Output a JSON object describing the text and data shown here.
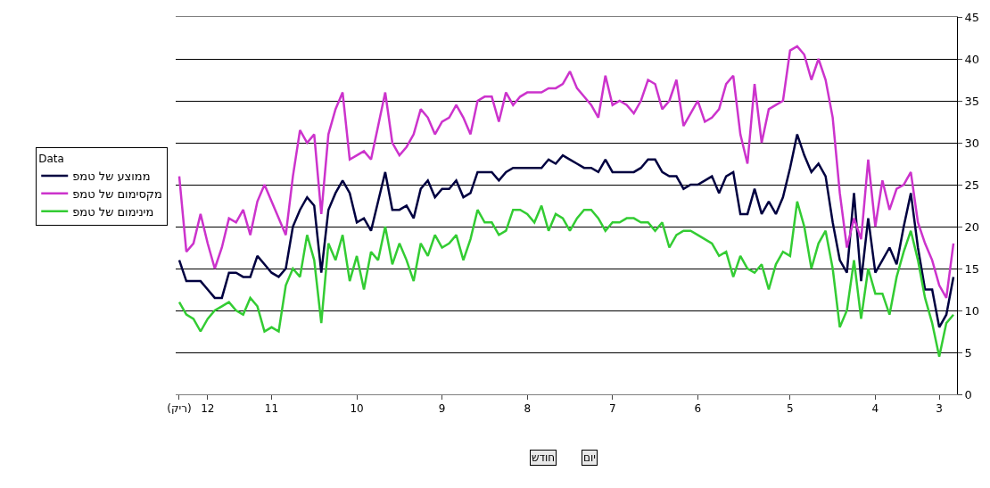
{
  "chart_data": {
    "type": "line",
    "categories": [
      "(ריק)",
      null,
      null,
      null,
      "12",
      null,
      null,
      null,
      null,
      null,
      null,
      null,
      null,
      "11",
      null,
      null,
      null,
      null,
      null,
      null,
      null,
      null,
      null,
      null,
      null,
      "10",
      null,
      null,
      null,
      null,
      null,
      null,
      null,
      null,
      null,
      null,
      null,
      "9",
      null,
      null,
      null,
      null,
      null,
      null,
      null,
      null,
      null,
      null,
      null,
      "8",
      null,
      null,
      null,
      null,
      null,
      null,
      null,
      null,
      null,
      null,
      null,
      "7",
      null,
      null,
      null,
      null,
      null,
      null,
      null,
      null,
      null,
      null,
      null,
      "6",
      null,
      null,
      null,
      null,
      null,
      null,
      null,
      null,
      null,
      null,
      null,
      null,
      "5",
      null,
      null,
      null,
      null,
      null,
      null,
      null,
      null,
      null,
      null,
      null,
      "4",
      null,
      null,
      null,
      null,
      null,
      null,
      null,
      null,
      "3",
      null,
      null
    ],
    "series": [
      {
        "name": "ממוצע של טמפ",
        "color": "#000040",
        "values": [
          16,
          13.5,
          13.5,
          13.5,
          12.5,
          11.5,
          11.5,
          14.5,
          14.5,
          14,
          14,
          16.5,
          15.5,
          14.5,
          14,
          15,
          20,
          22,
          23.5,
          22.5,
          14.5,
          22,
          24,
          25.5,
          24,
          20.5,
          21,
          19.5,
          23,
          26.5,
          22,
          22,
          22.5,
          21,
          24.5,
          25.5,
          23.5,
          24.5,
          24.5,
          25.5,
          23.5,
          24,
          26.5,
          26.5,
          26.5,
          25.5,
          26.5,
          27,
          27,
          27,
          27,
          27,
          28,
          27.5,
          28.5,
          28,
          27.5,
          27,
          27,
          26.5,
          28,
          26.5,
          26.5,
          26.5,
          26.5,
          27,
          28,
          28,
          26.5,
          26,
          26,
          24.5,
          25,
          25,
          25.5,
          26,
          24,
          26,
          26.5,
          21.5,
          21.5,
          24.5,
          21.5,
          23,
          21.5,
          23.5,
          27,
          31,
          28.5,
          26.5,
          27.5,
          26,
          20.5,
          16,
          14.5,
          24,
          13.5,
          21,
          14.5,
          16,
          17.5,
          15.5,
          20,
          24,
          17.5,
          12.5,
          12.5,
          8,
          9.5,
          14
        ]
      },
      {
        "name": "מקסימום של טמפ",
        "color": "#cc33cc",
        "values": [
          26,
          17,
          18,
          21.5,
          18,
          15,
          17.5,
          21,
          20.5,
          22,
          19,
          23,
          25,
          23,
          21,
          19,
          26,
          31.5,
          30,
          31,
          21.5,
          31,
          34,
          36,
          28,
          28.5,
          29,
          28,
          32,
          36,
          30,
          28.5,
          29.5,
          31,
          34,
          33,
          31,
          32.5,
          33,
          34.5,
          33,
          31,
          35,
          35.5,
          35.5,
          32.5,
          36,
          34.5,
          35.5,
          36,
          36,
          36,
          36.5,
          36.5,
          37,
          38.5,
          36.5,
          35.5,
          34.5,
          33,
          38,
          34.5,
          35,
          34.5,
          33.5,
          35,
          37.5,
          37,
          34,
          35,
          37.5,
          32,
          33.5,
          35,
          32.5,
          33,
          34,
          37,
          38,
          31,
          27.5,
          37,
          30,
          34,
          34.5,
          35,
          41,
          41.5,
          40.5,
          37.5,
          40,
          37.5,
          33,
          24,
          17.5,
          21,
          18.5,
          28,
          20,
          25.5,
          22,
          24.5,
          25,
          26.5,
          20.5,
          18,
          16,
          13,
          11.5,
          18
        ]
      },
      {
        "name": "מינימום של טמפ",
        "color": "#33cc33",
        "values": [
          11,
          9.5,
          9,
          7.5,
          9,
          10,
          10.5,
          11,
          10,
          9.5,
          11.5,
          10.5,
          7.5,
          8,
          7.5,
          13,
          15,
          14,
          19,
          16,
          8.5,
          18,
          16,
          19,
          13.5,
          16.5,
          12.5,
          17,
          16,
          20,
          15.5,
          18,
          16,
          13.5,
          18,
          16.5,
          19,
          17.5,
          18,
          19,
          16,
          18.5,
          22,
          20.5,
          20.5,
          19,
          19.5,
          22,
          22,
          21.5,
          20.5,
          22.5,
          19.5,
          21.5,
          21,
          19.5,
          21,
          22,
          22,
          21,
          19.5,
          20.5,
          20.5,
          21,
          21,
          20.5,
          20.5,
          19.5,
          20.5,
          17.5,
          19,
          19.5,
          19.5,
          19,
          18.5,
          18,
          16.5,
          17,
          14,
          16.5,
          15,
          14.5,
          15.5,
          12.5,
          15.5,
          17,
          16.5,
          23,
          20,
          15,
          18,
          19.5,
          15,
          8,
          10,
          16,
          9,
          15,
          12,
          12,
          9.5,
          14,
          17,
          19.5,
          16,
          11.5,
          8.5,
          4.5,
          8.5,
          9.5
        ]
      }
    ],
    "legend_title": "Data",
    "ylim": [
      0,
      45
    ],
    "yticks": [
      0,
      5,
      10,
      15,
      20,
      25,
      30,
      35,
      40,
      45
    ],
    "grid": "y",
    "legend": "left",
    "marker": "none",
    "line_style": "solid",
    "annotations": [
      "חודש",
      "יום"
    ]
  }
}
